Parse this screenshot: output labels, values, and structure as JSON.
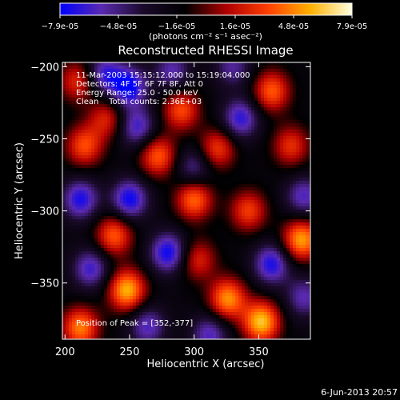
{
  "chart_data": {
    "type": "heatmap",
    "title": "Reconstructed RHESSI Image",
    "xlabel": "Heliocentric X (arcsec)",
    "ylabel": "Heliocentric Y (arcsec)",
    "xlim": [
      198,
      390
    ],
    "ylim": [
      -389,
      -197
    ],
    "x_ticks": [
      200,
      250,
      300,
      350
    ],
    "y_ticks": [
      -200,
      -250,
      -300,
      -350
    ],
    "x_tick_labels": [
      "200",
      "250",
      "300",
      "350"
    ],
    "y_tick_labels": [
      "-200",
      "-250",
      "-300",
      "-350"
    ],
    "colorbar": {
      "range": [
        -7.9e-05,
        7.9e-05
      ],
      "tick_labels": [
        "-7.9e-05",
        "-4.8e-05",
        "-1.6e-05",
        "1.6e-05",
        "4.8e-05",
        "7.9e-05"
      ],
      "units_label": "(photons cm⁻² s⁻¹ asec⁻²)",
      "colormap_stops": [
        "#0000ff",
        "#5a2ab0",
        "#1a0a2a",
        "#000000",
        "#b00000",
        "#ff4000",
        "#ffb000",
        "#ffffe0"
      ]
    },
    "annotations": [
      "11-Mar-2003 15:15:12.000 to 15:19:04.000",
      "Detectors: 4F 5F 6F 7F 8F, Att 0",
      "Energy Range: 25.0 - 50.0 keV",
      "Clean    Total counts: 2.36E+03"
    ],
    "peak_label": "Position of Peak = [352,-377]",
    "peak_position": [
      352,
      -377
    ],
    "sources": [
      {
        "x": 352,
        "y": -377,
        "amp": 1.0
      },
      {
        "x": 383,
        "y": -320,
        "amp": 0.9
      },
      {
        "x": 248,
        "y": -355,
        "amp": 0.95
      },
      {
        "x": 326,
        "y": -361,
        "amp": 0.85
      },
      {
        "x": 212,
        "y": -381,
        "amp": 0.8
      },
      {
        "x": 300,
        "y": -292,
        "amp": 0.75
      },
      {
        "x": 360,
        "y": -217,
        "amp": 0.7
      },
      {
        "x": 238,
        "y": -317,
        "amp": 0.7
      },
      {
        "x": 290,
        "y": -230,
        "amp": 0.65
      },
      {
        "x": 215,
        "y": -255,
        "amp": 0.65
      },
      {
        "x": 272,
        "y": -262,
        "amp": 0.7
      },
      {
        "x": 342,
        "y": -300,
        "amp": 0.6
      },
      {
        "x": 318,
        "y": -257,
        "amp": 0.6
      },
      {
        "x": 210,
        "y": -210,
        "amp": 0.55
      },
      {
        "x": 375,
        "y": -255,
        "amp": 0.55
      },
      {
        "x": 232,
        "y": -236,
        "amp": 0.5
      },
      {
        "x": 303,
        "y": -334,
        "amp": 0.5
      },
      {
        "x": 249,
        "y": -214,
        "amp": -0.8
      },
      {
        "x": 250,
        "y": -292,
        "amp": -0.75
      },
      {
        "x": 212,
        "y": -292,
        "amp": -0.7
      },
      {
        "x": 280,
        "y": -329,
        "amp": -0.75
      },
      {
        "x": 230,
        "y": -205,
        "amp": -0.6
      },
      {
        "x": 256,
        "y": -242,
        "amp": -0.6
      },
      {
        "x": 336,
        "y": -236,
        "amp": -0.65
      },
      {
        "x": 360,
        "y": -337,
        "amp": -0.7
      },
      {
        "x": 312,
        "y": -386,
        "amp": -0.55
      },
      {
        "x": 264,
        "y": -380,
        "amp": -0.55
      },
      {
        "x": 385,
        "y": -290,
        "amp": -0.55
      },
      {
        "x": 220,
        "y": -340,
        "amp": -0.6
      },
      {
        "x": 300,
        "y": -270,
        "amp": -0.45
      },
      {
        "x": 385,
        "y": -360,
        "amp": -0.5
      },
      {
        "x": 283,
        "y": -203,
        "amp": -0.5
      },
      {
        "x": 330,
        "y": -200,
        "amp": -0.45
      }
    ]
  },
  "footer": {
    "date": "6-Jun-2013 20:57"
  }
}
